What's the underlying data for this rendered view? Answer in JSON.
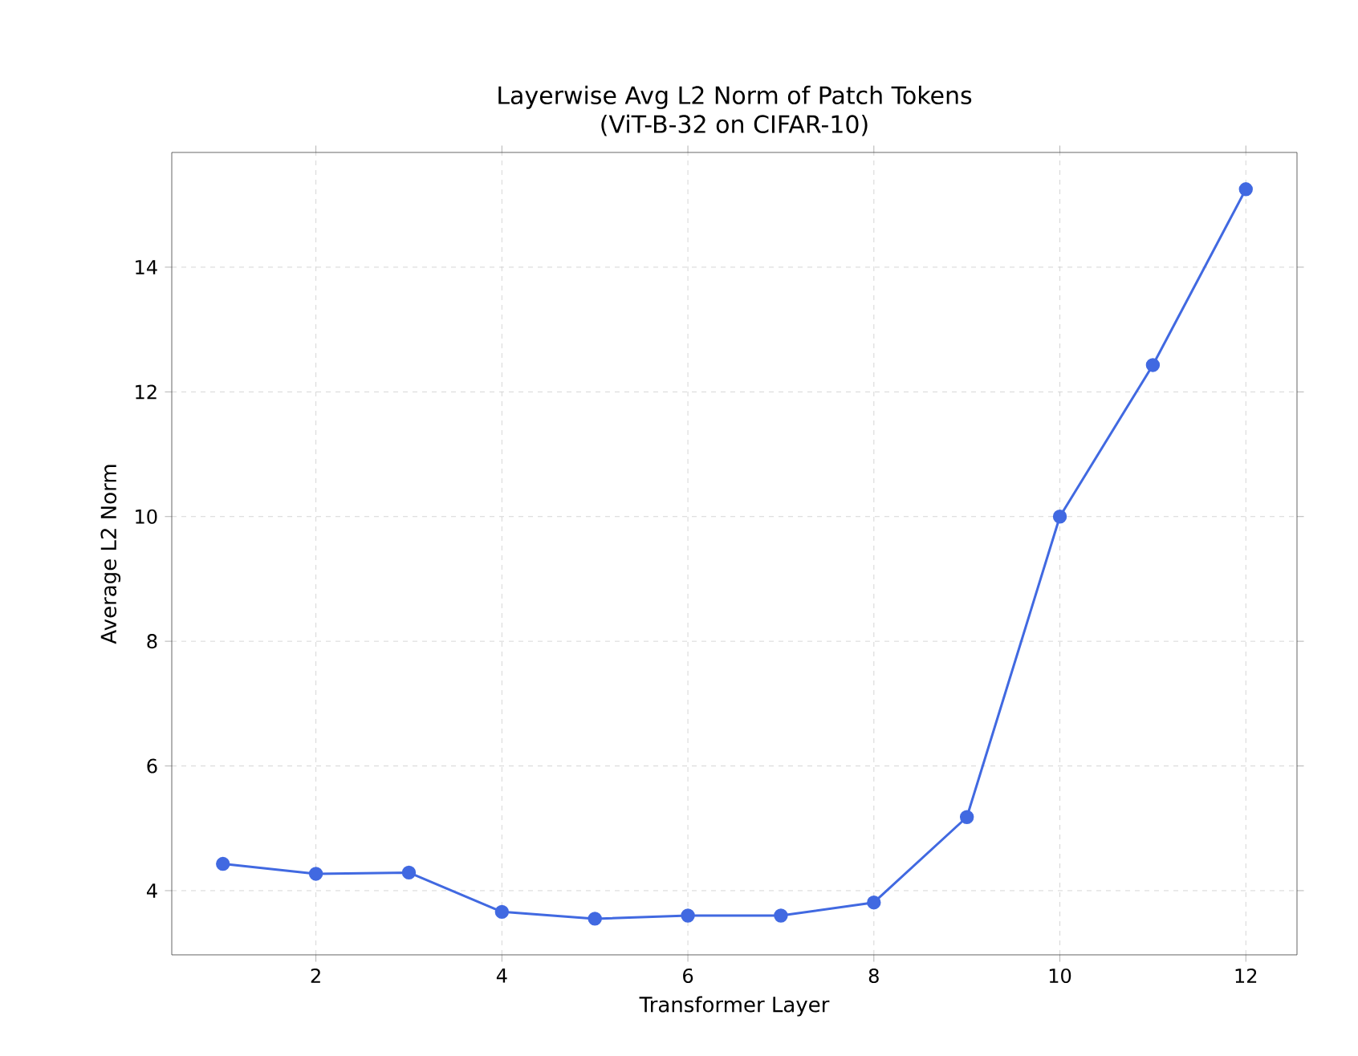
{
  "chart_data": {
    "type": "line",
    "title": "Layerwise Avg L2 Norm of Patch Tokens",
    "subtitle": "(ViT-B-32 on CIFAR-10)",
    "xlabel": "Transformer Layer",
    "ylabel": "Average L2 Norm",
    "x": [
      1,
      2,
      3,
      4,
      5,
      6,
      7,
      8,
      9,
      10,
      11,
      12
    ],
    "series": [
      {
        "color": "#4169e1",
        "values": [
          4.43,
          4.27,
          4.29,
          3.66,
          3.55,
          3.6,
          3.6,
          3.81,
          5.18,
          10.0,
          12.43,
          15.25
        ]
      }
    ],
    "xlim": [
      0.45,
      12.55
    ],
    "ylim": [
      2.97,
      15.84
    ],
    "xticks": [
      2,
      4,
      6,
      8,
      10,
      12
    ],
    "yticks": [
      4,
      6,
      8,
      10,
      12,
      14
    ],
    "grid": true,
    "marker": "circle",
    "line_style": "solid"
  }
}
